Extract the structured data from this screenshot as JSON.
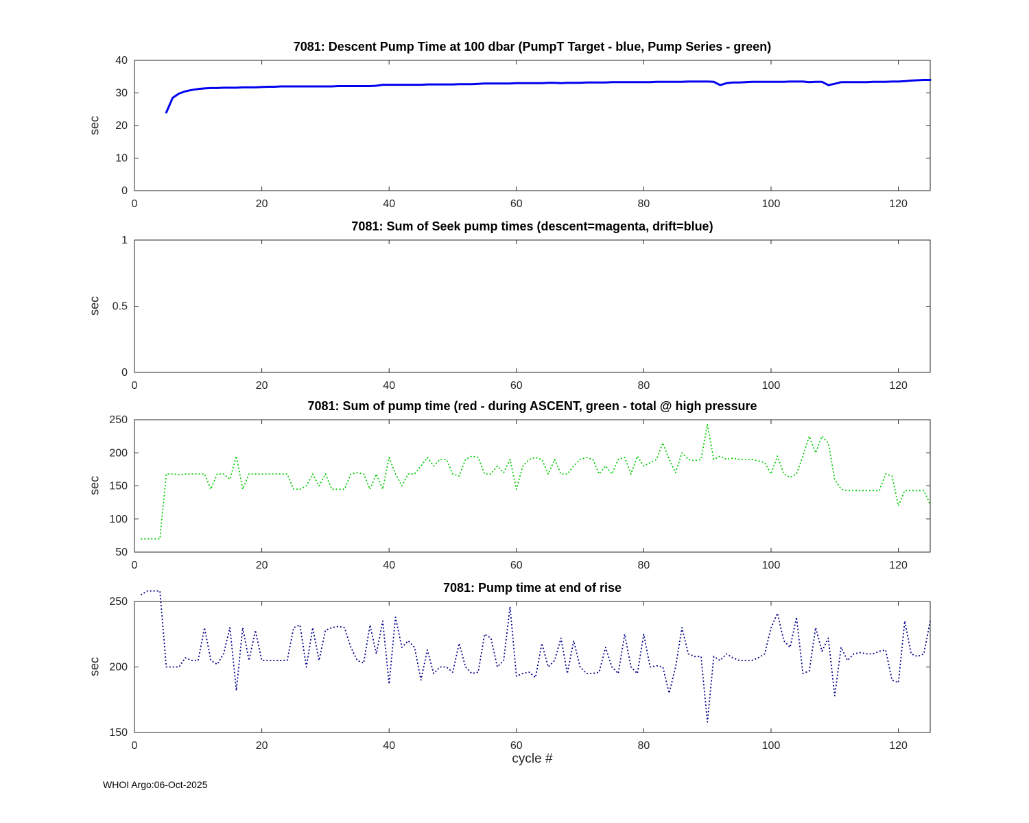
{
  "figure": {
    "xlabel": "cycle #",
    "footer": "WHOI Argo:06-Oct-2025",
    "axis_color": "#262626",
    "background": "#ffffff"
  },
  "chart_data": [
    {
      "type": "line",
      "title": "7081: Descent Pump Time at 100 dbar (PumpT Target - blue, Pump Series - green)",
      "ylabel": "sec",
      "xlabel": "",
      "xlim": [
        0,
        125
      ],
      "ylim": [
        0,
        40
      ],
      "xticks": [
        0,
        20,
        40,
        60,
        80,
        100,
        120
      ],
      "yticks": [
        0,
        10,
        20,
        30,
        40
      ],
      "grid": false,
      "legend": "none",
      "series": [
        {
          "name": "PumpT Target",
          "color": "#0000EE",
          "style": "solid",
          "width": 3,
          "x_start": 5,
          "values": [
            24,
            28.5,
            29.8,
            30.5,
            30.9,
            31.2,
            31.4,
            31.5,
            31.5,
            31.6,
            31.6,
            31.6,
            31.7,
            31.7,
            31.7,
            31.8,
            31.9,
            31.9,
            32,
            32,
            32,
            32,
            32,
            32,
            32,
            32,
            32,
            32.1,
            32.1,
            32.1,
            32.1,
            32.1,
            32.1,
            32.2,
            32.5,
            32.5,
            32.5,
            32.5,
            32.5,
            32.5,
            32.5,
            32.6,
            32.6,
            32.6,
            32.6,
            32.6,
            32.7,
            32.7,
            32.7,
            32.8,
            32.9,
            32.9,
            32.9,
            32.9,
            32.9,
            33,
            33,
            33,
            33,
            33,
            33.1,
            33.1,
            33,
            33.1,
            33.1,
            33.1,
            33.2,
            33.2,
            33.2,
            33.2,
            33.3,
            33.3,
            33.3,
            33.3,
            33.3,
            33.3,
            33.3,
            33.4,
            33.4,
            33.4,
            33.4,
            33.4,
            33.5,
            33.5,
            33.5,
            33.5,
            33.4,
            32.4,
            33,
            33.2,
            33.2,
            33.3,
            33.4,
            33.4,
            33.4,
            33.4,
            33.4,
            33.4,
            33.5,
            33.5,
            33.5,
            33.3,
            33.4,
            33.4,
            32.4,
            32.8,
            33.3,
            33.3,
            33.3,
            33.3,
            33.3,
            33.4,
            33.4,
            33.4,
            33.5,
            33.5,
            33.6,
            33.8,
            33.9,
            34,
            34
          ]
        }
      ]
    },
    {
      "type": "line",
      "title": "7081: Sum of Seek pump times (descent=magenta, drift=blue)",
      "ylabel": "sec",
      "xlabel": "",
      "xlim": [
        0,
        125
      ],
      "ylim": [
        0,
        1
      ],
      "xticks": [
        0,
        20,
        40,
        60,
        80,
        100,
        120
      ],
      "yticks": [
        0,
        0.5,
        1
      ],
      "grid": false,
      "legend": "none",
      "series": []
    },
    {
      "type": "line",
      "title": "7081: Sum of pump time (red - during ASCENT, green - total @ high pressure",
      "ylabel": "sec",
      "xlabel": "",
      "xlim": [
        0,
        125
      ],
      "ylim": [
        50,
        250
      ],
      "xticks": [
        0,
        20,
        40,
        60,
        80,
        100,
        120
      ],
      "yticks": [
        50,
        100,
        150,
        200,
        250
      ],
      "grid": false,
      "legend": "none",
      "series": [
        {
          "name": "total @ high pressure",
          "color": "#00CC00",
          "style": "dotted",
          "width": 1.8,
          "x_start": 1,
          "values": [
            70,
            70,
            70,
            70,
            168,
            168,
            167,
            168,
            168,
            168,
            168,
            145,
            168,
            168,
            160,
            195,
            145,
            168,
            168,
            168,
            168,
            168,
            168,
            168,
            145,
            145,
            150,
            168,
            150,
            168,
            145,
            145,
            145,
            168,
            170,
            168,
            145,
            168,
            145,
            193,
            168,
            150,
            168,
            168,
            180,
            193,
            180,
            190,
            190,
            168,
            165,
            190,
            195,
            193,
            168,
            168,
            180,
            170,
            190,
            145,
            180,
            190,
            193,
            190,
            168,
            190,
            168,
            168,
            180,
            190,
            193,
            190,
            168,
            180,
            168,
            190,
            193,
            168,
            195,
            180,
            185,
            190,
            215,
            190,
            170,
            200,
            190,
            188,
            190,
            243,
            190,
            195,
            190,
            192,
            190,
            190,
            190,
            188,
            185,
            168,
            195,
            168,
            163,
            168,
            195,
            225,
            200,
            225,
            215,
            160,
            145,
            143,
            143,
            143,
            143,
            143,
            143,
            168,
            165,
            120,
            143,
            143,
            143,
            143,
            122
          ]
        }
      ]
    },
    {
      "type": "line",
      "title": "7081: Pump time at end of rise",
      "ylabel": "sec",
      "xlabel": "cycle #",
      "xlim": [
        0,
        125
      ],
      "ylim": [
        150,
        250
      ],
      "xticks": [
        0,
        20,
        40,
        60,
        80,
        100,
        120
      ],
      "yticks": [
        150,
        200,
        250
      ],
      "grid": false,
      "legend": "none",
      "series": [
        {
          "name": "pump time at end of rise",
          "color": "#00008B",
          "style": "dotted",
          "width": 1.8,
          "x_start": 1,
          "values": [
            255,
            258,
            258,
            258,
            200,
            200,
            200,
            207,
            205,
            205,
            230,
            205,
            202,
            210,
            230,
            182,
            230,
            205,
            228,
            205,
            205,
            205,
            205,
            205,
            230,
            232,
            200,
            230,
            205,
            228,
            230,
            231,
            230,
            215,
            205,
            203,
            232,
            210,
            235,
            187,
            238,
            215,
            220,
            215,
            190,
            213,
            195,
            200,
            200,
            196,
            218,
            200,
            195,
            196,
            225,
            222,
            200,
            205,
            246,
            193,
            195,
            196,
            192,
            218,
            200,
            205,
            222,
            195,
            220,
            200,
            195,
            195,
            196,
            215,
            200,
            195,
            225,
            200,
            195,
            225,
            200,
            201,
            200,
            180,
            200,
            230,
            210,
            208,
            208,
            158,
            208,
            205,
            210,
            207,
            205,
            205,
            205,
            207,
            210,
            230,
            241,
            220,
            215,
            238,
            195,
            197,
            230,
            212,
            222,
            178,
            215,
            205,
            210,
            211,
            210,
            210,
            212,
            213,
            190,
            188,
            235,
            210,
            208,
            210,
            235
          ]
        }
      ]
    }
  ]
}
